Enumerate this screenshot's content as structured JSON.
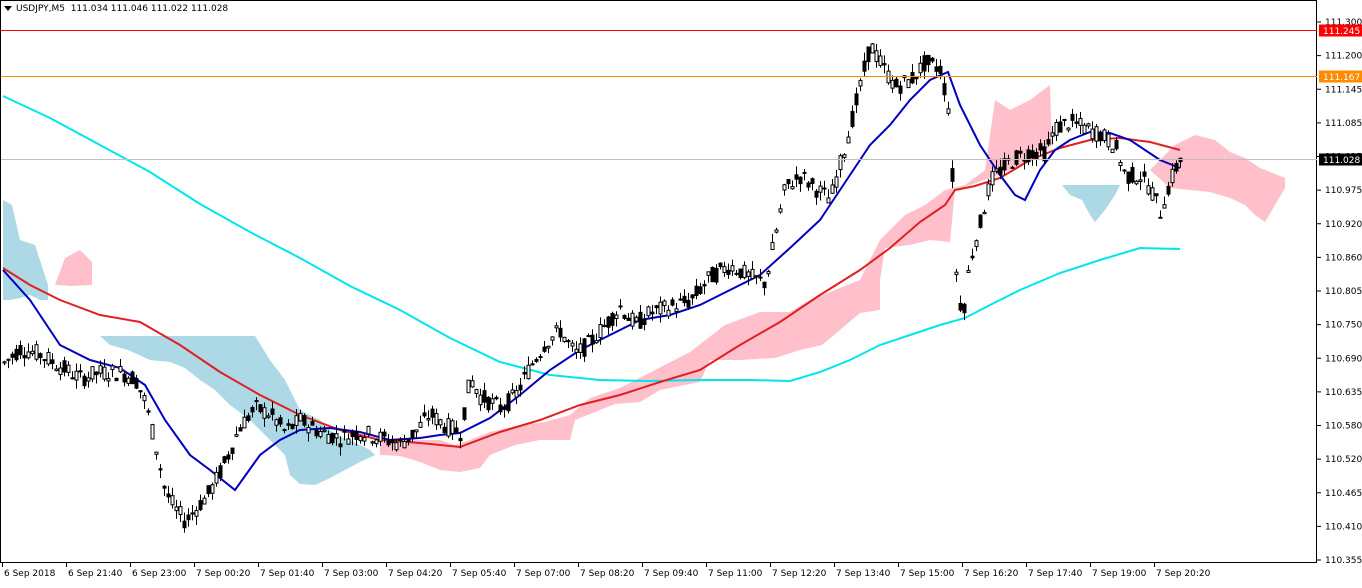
{
  "header": {
    "symbol_timeframe": "USDJPY,M5",
    "ohlc": "111.034 111.046 111.022 111.028"
  },
  "price_axis": {
    "ticks": [
      "111.300",
      "111.200",
      "111.145",
      "111.085",
      "111.025",
      "110.975",
      "110.920",
      "110.860",
      "110.805",
      "110.750",
      "110.690",
      "110.635",
      "110.580",
      "110.520",
      "110.465",
      "110.410",
      "110.355"
    ],
    "markers": [
      {
        "label": "111.245",
        "price": 111.245,
        "color": "#ff0000",
        "kind": "resistance-line"
      },
      {
        "label": "111.167",
        "price": 111.167,
        "color": "#ff8c00",
        "kind": "level-line"
      },
      {
        "label": "111.028",
        "price": 111.028,
        "color": "#000000",
        "kind": "bid-line"
      }
    ]
  },
  "time_axis": {
    "labels": [
      "6 Sep 2018",
      "6 Sep 21:40",
      "6 Sep 23:00",
      "7 Sep 00:20",
      "7 Sep 01:40",
      "7 Sep 03:00",
      "7 Sep 04:20",
      "7 Sep 05:40",
      "7 Sep 07:00",
      "7 Sep 08:20",
      "7 Sep 09:40",
      "7 Sep 11:00",
      "7 Sep 12:20",
      "7 Sep 13:40",
      "7 Sep 15:00",
      "7 Sep 16:20",
      "7 Sep 17:40",
      "7 Sep 19:00",
      "7 Sep 20:20"
    ]
  },
  "colors": {
    "candles": "#000000",
    "ma_fast": "#0000c0",
    "ma_mid": "#e02020",
    "ma_slow": "#00e5ee",
    "cloud_bull": "#ffc0cb",
    "cloud_bear": "#add8e6",
    "grid_axis": "#000000"
  },
  "chart_data": {
    "type": "candlestick",
    "symbol": "USDJPY",
    "timeframe": "M5",
    "ylim": [
      110.355,
      111.32
    ],
    "last_price": 111.028,
    "horizontal_levels": [
      111.245,
      111.167
    ],
    "indicators": [
      "fast moving average (blue)",
      "medium moving average (red)",
      "slow moving average (cyan)",
      "Ichimoku cloud (pink / light blue)"
    ],
    "price_path": [
      [
        0,
        110.68
      ],
      [
        20,
        110.71
      ],
      [
        40,
        110.7
      ],
      [
        60,
        110.68
      ],
      [
        80,
        110.66
      ],
      [
        100,
        110.67
      ],
      [
        120,
        110.67
      ],
      [
        135,
        110.66
      ],
      [
        145,
        110.62
      ],
      [
        155,
        110.55
      ],
      [
        165,
        110.47
      ],
      [
        175,
        110.44
      ],
      [
        185,
        110.42
      ],
      [
        195,
        110.44
      ],
      [
        210,
        110.47
      ],
      [
        225,
        110.52
      ],
      [
        240,
        110.58
      ],
      [
        255,
        110.61
      ],
      [
        270,
        110.6
      ],
      [
        285,
        110.57
      ],
      [
        300,
        110.59
      ],
      [
        320,
        110.57
      ],
      [
        340,
        110.56
      ],
      [
        360,
        110.57
      ],
      [
        380,
        110.56
      ],
      [
        400,
        110.55
      ],
      [
        415,
        110.57
      ],
      [
        430,
        110.6
      ],
      [
        445,
        110.58
      ],
      [
        460,
        110.57
      ],
      [
        470,
        110.66
      ],
      [
        480,
        110.63
      ],
      [
        500,
        110.61
      ],
      [
        515,
        110.63
      ],
      [
        530,
        110.68
      ],
      [
        545,
        110.72
      ],
      [
        560,
        110.74
      ],
      [
        575,
        110.7
      ],
      [
        590,
        110.72
      ],
      [
        605,
        110.75
      ],
      [
        620,
        110.78
      ],
      [
        635,
        110.75
      ],
      [
        650,
        110.77
      ],
      [
        670,
        110.78
      ],
      [
        690,
        110.79
      ],
      [
        710,
        110.83
      ],
      [
        730,
        110.85
      ],
      [
        750,
        110.83
      ],
      [
        765,
        110.82
      ],
      [
        775,
        110.9
      ],
      [
        785,
        110.98
      ],
      [
        800,
        111.0
      ],
      [
        815,
        110.98
      ],
      [
        830,
        110.96
      ],
      [
        845,
        111.05
      ],
      [
        860,
        111.15
      ],
      [
        870,
        111.22
      ],
      [
        880,
        111.19
      ],
      [
        895,
        111.15
      ],
      [
        910,
        111.16
      ],
      [
        925,
        111.19
      ],
      [
        940,
        111.18
      ],
      [
        950,
        111.1
      ],
      [
        955,
        110.85
      ],
      [
        962,
        110.76
      ],
      [
        970,
        110.86
      ],
      [
        980,
        110.92
      ],
      [
        990,
        110.99
      ],
      [
        1000,
        111.01
      ],
      [
        1015,
        111.03
      ],
      [
        1030,
        111.04
      ],
      [
        1045,
        111.04
      ],
      [
        1055,
        111.08
      ],
      [
        1070,
        111.09
      ],
      [
        1085,
        111.08
      ],
      [
        1100,
        111.07
      ],
      [
        1115,
        111.05
      ],
      [
        1125,
        111.0
      ],
      [
        1140,
        111.0
      ],
      [
        1150,
        110.98
      ],
      [
        1160,
        110.94
      ],
      [
        1170,
        110.99
      ],
      [
        1180,
        111.03
      ]
    ]
  }
}
